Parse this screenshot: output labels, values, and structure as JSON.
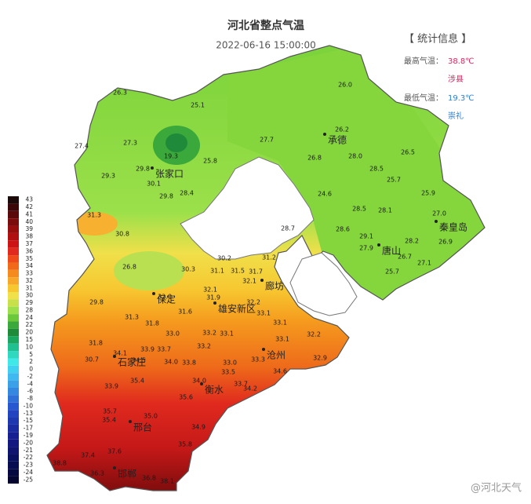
{
  "header": {
    "title": "河北省整点气温",
    "datetime": "2022-06-16 15:00:00"
  },
  "stats": {
    "heading": "【 统计信息 】",
    "max_label": "最高气温：",
    "max_value": "38.8℃",
    "max_place": "涉县",
    "min_label": "最低气温：",
    "min_value": "19.3℃",
    "min_place": "崇礼"
  },
  "legend": [
    "43",
    "42",
    "41",
    "40",
    "39",
    "38",
    "37",
    "36",
    "35",
    "34",
    "33",
    "32",
    "31",
    "30",
    "29",
    "28",
    "24",
    "22",
    "20",
    "15",
    "10",
    "5",
    "2",
    "0",
    "-2",
    "-4",
    "-6",
    "-8",
    "-10",
    "-13",
    "-15",
    "-17",
    "-19",
    "-20",
    "-21",
    "-22",
    "-23",
    "-24",
    "-25"
  ],
  "cities": [
    "张家口",
    "承德",
    "秦皇岛",
    "唐山",
    "廊坊",
    "保定",
    "雄安新区",
    "石家庄",
    "衡水",
    "沧州",
    "邢台",
    "邯郸"
  ],
  "stations": [
    "26.3",
    "25.1",
    "27.4",
    "27.3",
    "19.3",
    "25.8",
    "29.3",
    "29.8",
    "30.1",
    "29.8",
    "28.4",
    "26.0",
    "26.2",
    "27.7",
    "26.8",
    "28.0",
    "26.5",
    "28.5",
    "25.7",
    "24.6",
    "25.9",
    "28.5",
    "28.1",
    "27.0",
    "28.7",
    "28.6",
    "29.1",
    "28.2",
    "26.9",
    "27.9",
    "26.7",
    "27.1",
    "25.7",
    "31.3",
    "30.8",
    "26.8",
    "30.2",
    "31.2",
    "30.3",
    "31.1",
    "31.5",
    "31.7",
    "32.1",
    "29.8",
    "32.1",
    "31.9",
    "32.0",
    "31.6",
    "32.2",
    "31.3",
    "31.8",
    "33.1",
    "33.1",
    "33.0",
    "33.2",
    "33.1",
    "32.2",
    "31.8",
    "33.9",
    "33.7",
    "33.2",
    "33.1",
    "34.1",
    "34.0",
    "33.8",
    "33.0",
    "32.9",
    "30.7",
    "34.5",
    "33.5",
    "33.3",
    "34.6",
    "34.0",
    "33.7",
    "34.2",
    "33.9",
    "35.4",
    "35.6",
    "35.7",
    "35.0",
    "34.9",
    "35.4",
    "37.4",
    "37.6",
    "38.8",
    "36.3",
    "35.8",
    "36.8",
    "38.1"
  ],
  "watermark": "@河北天气"
}
